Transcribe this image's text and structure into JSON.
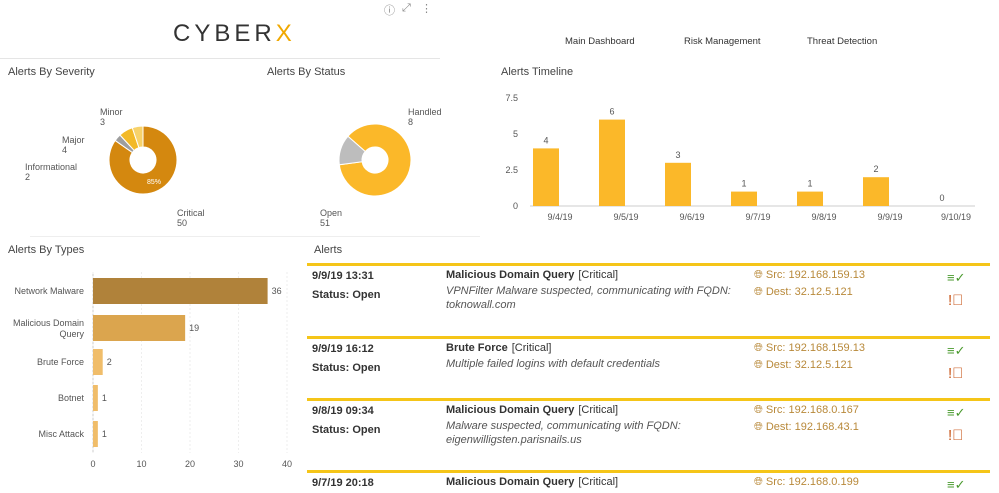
{
  "header": {
    "logo_main": "CYBER",
    "logo_accent": "X",
    "nav": [
      "Main Dashboard",
      "Risk Management",
      "Threat Detection"
    ]
  },
  "panels": {
    "severity": "Alerts By Severity",
    "status": "Alerts By Status",
    "timeline": "Alerts Timeline",
    "types": "Alerts By Types",
    "alerts": "Alerts"
  },
  "chart_data": [
    {
      "type": "pie",
      "title": "Alerts By Severity",
      "labels": [
        "Critical",
        "Informational",
        "Major",
        "Minor"
      ],
      "values": [
        50,
        2,
        4,
        3
      ],
      "colors": [
        "#d4880f",
        "#9e9e9e",
        "#f2b928",
        "#f7d26a"
      ],
      "center_label": "85%"
    },
    {
      "type": "pie",
      "title": "Alerts By Status",
      "labels": [
        "Open",
        "Handled"
      ],
      "values": [
        51,
        8
      ],
      "colors": [
        "#fbb829",
        "#bdbdbd"
      ]
    },
    {
      "type": "bar",
      "title": "Alerts Timeline",
      "categories": [
        "9/4/19",
        "9/5/19",
        "9/6/19",
        "9/7/19",
        "9/8/19",
        "9/9/19",
        "9/10/19"
      ],
      "values": [
        4,
        6,
        3,
        1,
        1,
        2,
        0
      ],
      "ylim": [
        0,
        7.5
      ],
      "yticks": [
        "0",
        "2.5",
        "5",
        "7.5"
      ],
      "color": "#fbb829"
    },
    {
      "type": "bar",
      "orientation": "horizontal",
      "title": "Alerts By Types",
      "categories": [
        "Network Malware",
        "Malicious Domain Query",
        "Brute Force",
        "Botnet",
        "Misc Attack"
      ],
      "values": [
        36,
        19,
        2,
        1,
        1
      ],
      "xlim": [
        0,
        40
      ],
      "xticks": [
        "0",
        "10",
        "20",
        "30",
        "40"
      ],
      "colors": [
        "#b0823a",
        "#dba54e",
        "#f0bd6a",
        "#f0bd6a",
        "#f0bd6a"
      ]
    }
  ],
  "alerts": [
    {
      "time": "9/9/19 13:31",
      "status": "Status: Open",
      "title": "Malicious Domain Query",
      "severity": "[Critical]",
      "desc": "VPNFilter Malware suspected, communicating with FQDN: toknowall.com",
      "src": "Src: 192.168.159.13",
      "dest": "Dest: 32.12.5.121"
    },
    {
      "time": "9/9/19 16:12",
      "status": "Status: Open",
      "title": "Brute Force",
      "severity": "[Critical]",
      "desc": "Multiple failed logins with default credentials",
      "src": "Src: 192.168.159.13",
      "dest": "Dest: 32.12.5.121"
    },
    {
      "time": "9/8/19 09:34",
      "status": "Status: Open",
      "title": "Malicious Domain Query",
      "severity": "[Critical]",
      "desc": "Malware suspected, communicating with FQDN: eigenwilligsten.parisnails.us",
      "src": "Src: 192.168.0.167",
      "dest": "Dest: 192.168.43.1"
    },
    {
      "time": "9/7/19 20:18",
      "status": "",
      "title": "Malicious Domain Query",
      "severity": "[Critical]",
      "desc": "",
      "src": "Src: 192.168.0.199",
      "dest": ""
    }
  ]
}
